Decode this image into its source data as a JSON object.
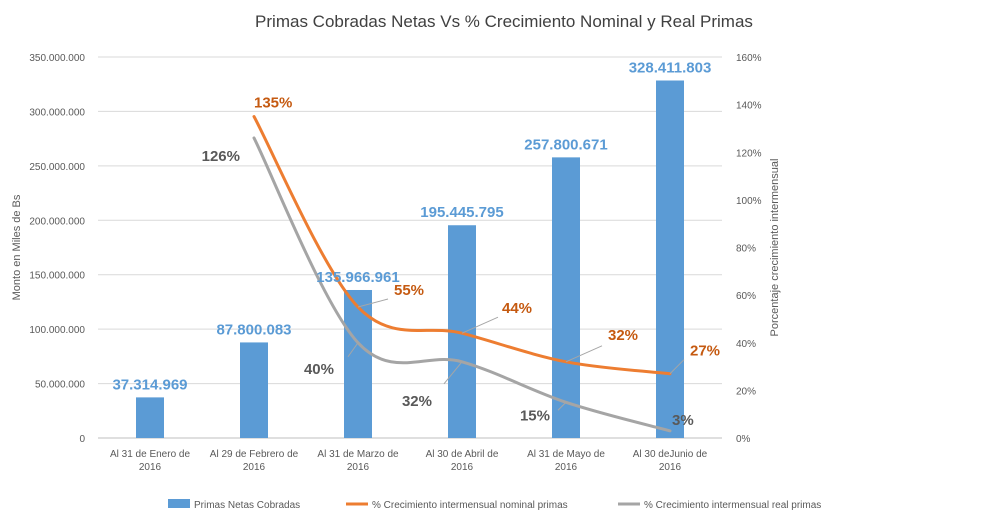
{
  "chart_data": {
    "type": "bar",
    "title": "Primas Cobradas Netas Vs % Crecimiento Nominal y Real Primas",
    "ylabel": "Monto en Miles de Bs",
    "y2label": "Porcentaje crecimiento intermensual",
    "ylim": [
      0,
      350000000
    ],
    "y2lim": [
      0,
      160
    ],
    "y_ticks": [
      "0",
      "50.000.000",
      "100.000.000",
      "150.000.000",
      "200.000.000",
      "250.000.000",
      "300.000.000",
      "350.000.000"
    ],
    "y2_ticks": [
      "0%",
      "20%",
      "40%",
      "60%",
      "80%",
      "100%",
      "120%",
      "140%",
      "160%"
    ],
    "categories": [
      [
        "Al 31 de Enero de",
        "2016"
      ],
      [
        "Al 29 de Febrero de",
        "2016"
      ],
      [
        "Al 31 de Marzo de",
        "2016"
      ],
      [
        "Al 30 de Abril de",
        "2016"
      ],
      [
        "Al 31 de Mayo de",
        "2016"
      ],
      [
        "Al 30 deJunio de",
        "2016"
      ]
    ],
    "series": [
      {
        "name": "Primas Netas Cobradas",
        "kind": "bar",
        "axis": "left",
        "color": "#5B9BD5",
        "values": [
          37314969,
          87800083,
          135966961,
          195445795,
          257800671,
          328411803
        ],
        "labels": [
          "37.314.969",
          "87.800.083",
          "135.966.961",
          "195.445.795",
          "257.800.671",
          "328.411.803"
        ]
      },
      {
        "name": "% Crecimiento intermensual nominal primas",
        "kind": "line",
        "axis": "right",
        "color": "#ED7D31",
        "label_color": "#C55A11",
        "values": [
          null,
          135,
          55,
          44,
          32,
          27
        ],
        "labels": [
          "",
          "135%",
          "55%",
          "44%",
          "32%",
          "27%"
        ]
      },
      {
        "name": "% Crecimiento intermensual real primas",
        "kind": "line",
        "axis": "right",
        "color": "#A5A5A5",
        "label_color": "#595959",
        "values": [
          null,
          126,
          40,
          32,
          15,
          3
        ],
        "labels": [
          "",
          "126%",
          "40%",
          "32%",
          "15%",
          "3%"
        ]
      }
    ],
    "legend_position": "bottom"
  }
}
